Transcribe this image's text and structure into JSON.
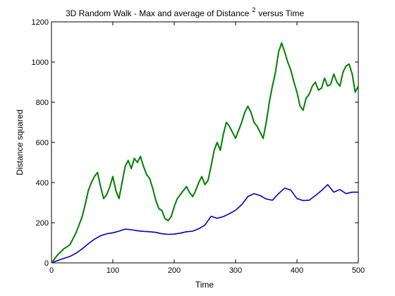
{
  "chart_data": {
    "type": "line",
    "title": "3D Random Walk - Max and average of Distance",
    "title_superscript": "2",
    "title_suffix": "versus Time",
    "xlabel": "Time",
    "ylabel": "Distance squared",
    "xlim": [
      0,
      500
    ],
    "ylim": [
      0,
      1200
    ],
    "xticks": [
      0,
      100,
      200,
      300,
      400,
      500
    ],
    "yticks": [
      0,
      200,
      400,
      600,
      800,
      1000,
      1200
    ],
    "grid": false,
    "legend": "none",
    "series": [
      {
        "color": "#0000c0",
        "x": [
          0,
          10,
          20,
          30,
          40,
          50,
          60,
          70,
          80,
          90,
          100,
          110,
          120,
          130,
          140,
          150,
          160,
          170,
          180,
          190,
          200,
          210,
          220,
          230,
          240,
          250,
          260,
          270,
          280,
          290,
          300,
          310,
          320,
          330,
          340,
          350,
          360,
          370,
          380,
          390,
          400,
          410,
          420,
          430,
          440,
          450,
          460,
          470,
          480,
          490,
          500
        ],
        "values": [
          0,
          12,
          22,
          32,
          48,
          70,
          95,
          118,
          135,
          145,
          150,
          158,
          168,
          165,
          160,
          157,
          155,
          152,
          145,
          142,
          143,
          148,
          155,
          158,
          170,
          188,
          232,
          222,
          230,
          245,
          262,
          290,
          330,
          345,
          335,
          318,
          312,
          345,
          372,
          362,
          320,
          310,
          312,
          335,
          360,
          390,
          352,
          365,
          345,
          352,
          352
        ]
      },
      {
        "color": "#007f00",
        "x": [
          0,
          10,
          20,
          30,
          40,
          50,
          55,
          60,
          65,
          70,
          75,
          80,
          85,
          90,
          95,
          100,
          105,
          110,
          115,
          120,
          125,
          130,
          135,
          140,
          145,
          150,
          155,
          160,
          165,
          170,
          175,
          180,
          185,
          190,
          195,
          200,
          205,
          210,
          215,
          220,
          225,
          230,
          235,
          240,
          245,
          250,
          255,
          260,
          265,
          270,
          275,
          280,
          285,
          290,
          295,
          300,
          305,
          310,
          315,
          320,
          325,
          330,
          335,
          340,
          345,
          350,
          355,
          360,
          365,
          370,
          375,
          380,
          385,
          390,
          395,
          400,
          405,
          410,
          415,
          420,
          425,
          430,
          435,
          440,
          445,
          450,
          455,
          460,
          465,
          470,
          475,
          480,
          485,
          490,
          495,
          500
        ],
        "values": [
          0,
          40,
          70,
          90,
          150,
          230,
          290,
          360,
          400,
          430,
          450,
          380,
          320,
          340,
          380,
          430,
          360,
          320,
          400,
          480,
          510,
          470,
          520,
          500,
          530,
          480,
          440,
          420,
          370,
          310,
          270,
          260,
          220,
          210,
          230,
          280,
          320,
          340,
          360,
          380,
          350,
          330,
          360,
          400,
          430,
          390,
          410,
          480,
          560,
          600,
          560,
          640,
          700,
          680,
          650,
          620,
          660,
          700,
          750,
          780,
          750,
          700,
          680,
          650,
          620,
          700,
          800,
          880,
          950,
          1050,
          1095,
          1050,
          1000,
          960,
          900,
          850,
          780,
          760,
          820,
          840,
          880,
          900,
          860,
          870,
          920,
          880,
          890,
          940,
          900,
          880,
          950,
          980,
          990,
          940,
          850,
          880
        ]
      }
    ]
  }
}
